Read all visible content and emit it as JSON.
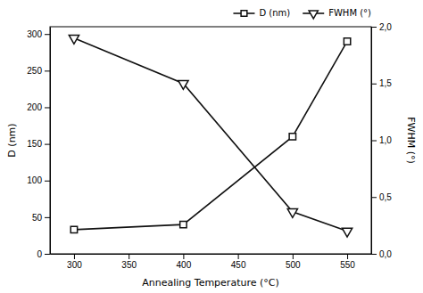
{
  "chart_data": {
    "type": "line",
    "x": [
      300,
      400,
      500,
      550
    ],
    "xlabel": "Annealing Temperature (°C)",
    "ylabel": "D (nm)",
    "y2label": "FWHM (°)",
    "xlim": [
      278,
      572
    ],
    "xticks": [
      300,
      350,
      400,
      450,
      500,
      550
    ],
    "ylim": [
      0,
      310
    ],
    "yticks": [
      0,
      50,
      100,
      150,
      200,
      250,
      300
    ],
    "y2lim": [
      0.0,
      2.0
    ],
    "y2ticks": [
      {
        "value": 0.0,
        "label": "0,0"
      },
      {
        "value": 0.5,
        "label": "0,5"
      },
      {
        "value": 1.0,
        "label": "1,0"
      },
      {
        "value": 1.5,
        "label": "1,5"
      },
      {
        "value": 2.0,
        "label": "2,0"
      }
    ],
    "grid": false,
    "legend": "upper right",
    "series": [
      {
        "name": "D (nm)",
        "color": "#111111",
        "marker": "square",
        "line_style": "solid",
        "values": [
          33,
          40,
          160,
          290
        ]
      },
      {
        "name": "FWHM (°)",
        "color": "#111111",
        "marker": "triangle-down",
        "line_style": "solid",
        "axis": "y2",
        "values": [
          1.9,
          1.5,
          0.37,
          0.2
        ]
      }
    ]
  }
}
